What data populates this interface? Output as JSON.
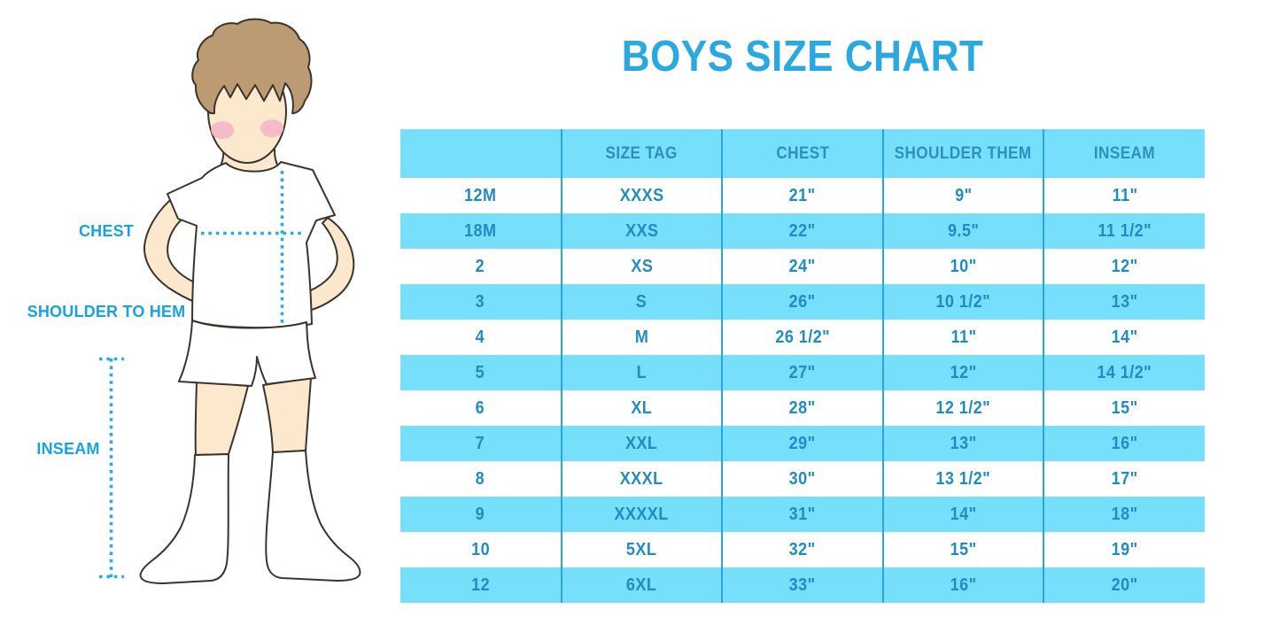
{
  "title": "BOYS SIZE CHART",
  "figure": {
    "labels": {
      "chest": "CHEST",
      "shoulder_to_hem": "SHOULDER TO HEM",
      "inseam": "INSEAM"
    }
  },
  "chart_data": {
    "type": "table",
    "title": "BOYS SIZE CHART",
    "columns": [
      "",
      "SIZE TAG",
      "CHEST",
      "SHOULDER THEM",
      "INSEAM"
    ],
    "rows": [
      [
        "12M",
        "XXXS",
        "21\"",
        "9\"",
        "11\""
      ],
      [
        "18M",
        "XXS",
        "22\"",
        "9.5\"",
        "11 1/2\""
      ],
      [
        "2",
        "XS",
        "24\"",
        "10\"",
        "12\""
      ],
      [
        "3",
        "S",
        "26\"",
        "10 1/2\"",
        "13\""
      ],
      [
        "4",
        "M",
        "26 1/2\"",
        "11\"",
        "14\""
      ],
      [
        "5",
        "L",
        "27\"",
        "12\"",
        "14 1/2\""
      ],
      [
        "6",
        "XL",
        "28\"",
        "12 1/2\"",
        "15\""
      ],
      [
        "7",
        "XXL",
        "29\"",
        "13\"",
        "16\""
      ],
      [
        "8",
        "XXXL",
        "30\"",
        "13 1/2\"",
        "17\""
      ],
      [
        "9",
        "XXXXL",
        "31\"",
        "14\"",
        "18\""
      ],
      [
        "10",
        "5XL",
        "32\"",
        "15\"",
        "19\""
      ],
      [
        "12",
        "6XL",
        "33\"",
        "16\"",
        "20\""
      ]
    ],
    "layout": "header row cyan; data rows alternate white and cyan; 4 internal column divider lines"
  },
  "colors": {
    "accent_blue": "#29A9E0",
    "stripe_cyan": "#75DFFC",
    "cell_text": "#1F8CC2",
    "divider": "#2BA5D9",
    "dotted_line": "#29ABE2",
    "label_blue": "#17A3E1",
    "skin": "#FBE8CD",
    "hair": "#BC9B72",
    "blush": "#F4B3C6"
  }
}
